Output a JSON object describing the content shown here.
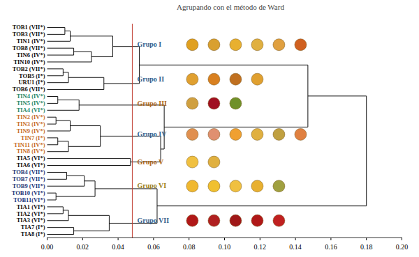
{
  "chart_data": {
    "type": "dendrogram",
    "title": "Agrupando con el método de Ward",
    "xlim": [
      0,
      0.2
    ],
    "xticks": [
      {
        "value": 0,
        "label": "0.00"
      },
      {
        "value": 0.02,
        "label": "0.02"
      },
      {
        "value": 0.04,
        "label": "0.04"
      },
      {
        "value": 0.06,
        "label": "0.06"
      },
      {
        "value": 0.08,
        "label": "0.08"
      },
      {
        "value": 0.1,
        "label": "0.10"
      },
      {
        "value": 0.12,
        "label": "0.12"
      },
      {
        "value": 0.14,
        "label": "0.14"
      },
      {
        "value": 0.16,
        "label": "0.16"
      },
      {
        "value": 0.18,
        "label": "0.18"
      },
      {
        "value": 0.2,
        "label": "0.20"
      }
    ],
    "tick_labels": "x",
    "threshold": 0.048,
    "leaves": [
      {
        "label": "TOB1 (VII*)",
        "color": "#111111"
      },
      {
        "label": "TOB3 (VII*)",
        "color": "#111111"
      },
      {
        "label": "TIN1 (IV*)",
        "color": "#111111"
      },
      {
        "label": "TOB8 (VII*)",
        "color": "#111111"
      },
      {
        "label": "TIN6 (IV*)",
        "color": "#111111"
      },
      {
        "label": "TIN10 (IV*)",
        "color": "#111111"
      },
      {
        "label": "TOB2 (VII*)",
        "color": "#111111"
      },
      {
        "label": "TOB5 (I*)",
        "color": "#111111"
      },
      {
        "label": "URU1 (I*)",
        "color": "#111111"
      },
      {
        "label": "TOB6 (VII*)",
        "color": "#111111"
      },
      {
        "label": "TIN4 (IV*)",
        "color": "#2a8a6a"
      },
      {
        "label": "TIN5 (IV*)",
        "color": "#2a8a6a"
      },
      {
        "label": "TIA4 (VI*)",
        "color": "#2a8a6a"
      },
      {
        "label": "TIN2 (IV*)",
        "color": "#c8702a"
      },
      {
        "label": "TIN3 (IV*)",
        "color": "#c8702a"
      },
      {
        "label": "TIN9 (IV*)",
        "color": "#c8702a"
      },
      {
        "label": "TIN7 (I*)",
        "color": "#c8702a"
      },
      {
        "label": "TIN11 (IV*)",
        "color": "#c8702a"
      },
      {
        "label": "TIN8 (IV*)",
        "color": "#c8702a"
      },
      {
        "label": "TIA5 (VI*)",
        "color": "#111111"
      },
      {
        "label": "TIA6 (VI*)",
        "color": "#111111"
      },
      {
        "label": "TOB4 (VII*)",
        "color": "#1f3a7a"
      },
      {
        "label": "TOB7 (VII*)",
        "color": "#1f3a7a"
      },
      {
        "label": "TOB9 (VII*)",
        "color": "#1f3a7a"
      },
      {
        "label": "TOB10 (VI*)",
        "color": "#1f3a7a"
      },
      {
        "label": "TOB11(VI*)",
        "color": "#1f3a7a"
      },
      {
        "label": "TIA1 (VI*)",
        "color": "#111111"
      },
      {
        "label": "TIA2 (VI*)",
        "color": "#111111"
      },
      {
        "label": "TIA3 (VI*)",
        "color": "#111111"
      },
      {
        "label": "TIA7 (I*)",
        "color": "#111111"
      },
      {
        "label": "TIA8 (I*)",
        "color": "#111111"
      }
    ],
    "tree": {
      "height": 0.18,
      "children": [
        {
          "height": 0.147,
          "children": [
            {
              "height": 0.052,
              "children": [
                {
                  "height": 0.037,
                  "children": [
                    {
                      "height": 0.013,
                      "children": [
                        {
                          "height": 0.01,
                          "children": [
                            0,
                            1
                          ]
                        },
                        2
                      ]
                    },
                    {
                      "height": 0.025,
                      "children": [
                        {
                          "height": 0.015,
                          "children": [
                            3,
                            4
                          ]
                        },
                        5
                      ]
                    }
                  ]
                },
                {
                  "height": 0.032,
                  "children": [
                    {
                      "height": 0.012,
                      "children": [
                        {
                          "height": 0.009,
                          "children": [
                            6,
                            7
                          ]
                        },
                        8
                      ]
                    },
                    9
                  ]
                }
              ]
            },
            {
              "height": 0.066,
              "children": [
                {
                  "height": 0.018,
                  "children": [
                    {
                      "height": 0.006,
                      "children": [
                        10,
                        11
                      ]
                    },
                    12
                  ]
                },
                {
                  "height": 0.064,
                  "children": [
                    {
                      "height": 0.03,
                      "children": [
                        {
                          "height": 0.013,
                          "children": [
                            {
                              "height": 0.005,
                              "children": [
                                13,
                                14
                              ]
                            },
                            15
                          ]
                        },
                        {
                          "height": 0.012,
                          "children": [
                            {
                              "height": 0.006,
                              "children": [
                                16,
                                17
                              ]
                            },
                            18
                          ]
                        }
                      ]
                    },
                    {
                      "height": 0.047,
                      "children": [
                        19,
                        20
                      ]
                    }
                  ]
                }
              ]
            }
          ]
        },
        {
          "height": 0.062,
          "children": [
            {
              "height": 0.027,
              "children": [
                {
                  "height": 0.021,
                  "children": [
                    {
                      "height": 0.011,
                      "children": [
                        21,
                        22
                      ]
                    },
                    23
                  ]
                },
                {
                  "height": 0.005,
                  "children": [
                    24,
                    25
                  ]
                }
              ]
            },
            {
              "height": 0.035,
              "children": [
                {
                  "height": 0.012,
                  "children": [
                    {
                      "height": 0.009,
                      "children": [
                        26,
                        27
                      ]
                    },
                    28
                  ]
                },
                {
                  "height": 0.015,
                  "children": [
                    29,
                    30
                  ]
                }
              ]
            }
          ]
        }
      ]
    },
    "groups": [
      {
        "name": "Grupo I",
        "color": "#2f5f8f",
        "leaves": [
          0,
          1,
          2,
          3,
          4,
          5
        ],
        "colors": [
          "#e0a020",
          "#d9a030",
          "#e8b030",
          "#e0b040",
          "#e0a040",
          "#d06020"
        ]
      },
      {
        "name": "Grupo II",
        "color": "#2f5f8f",
        "leaves": [
          6,
          7,
          8,
          9
        ],
        "colors": [
          "#e0a030",
          "#d98020",
          "#c07020",
          "#e0a030"
        ]
      },
      {
        "name": "Grupo III",
        "color": "#b06a20",
        "leaves": [
          10,
          11,
          12
        ],
        "colors": [
          "#d0a040",
          "#a01020",
          "#70902a"
        ]
      },
      {
        "name": "Grupo IV",
        "color": "#2f5f8f",
        "leaves": [
          13,
          14,
          15,
          16,
          17,
          18
        ],
        "colors": [
          "#e09050",
          "#e09070",
          "#f0a030",
          "#e0b040",
          "#c0a040",
          "#e08040"
        ]
      },
      {
        "name": "Grupo V",
        "color": "#b06a20",
        "leaves": [
          19,
          20
        ],
        "colors": [
          "#f0c040",
          "#e0b040"
        ]
      },
      {
        "name": "Grupo VI",
        "color": "#9a8020",
        "leaves": [
          21,
          22,
          23,
          24,
          25
        ],
        "colors": [
          "#f0b830",
          "#f0c030",
          "#f0c040",
          "#e8b030",
          "#a0a040"
        ]
      },
      {
        "name": "Grupo VII",
        "color": "#2f5f8f",
        "leaves": [
          26,
          27,
          28,
          29,
          30
        ],
        "colors": [
          "#b01818",
          "#b02020",
          "#a01818",
          "#b01818",
          "#c02020"
        ]
      }
    ],
    "color": "#111111",
    "threshold_color": "#c0392b"
  }
}
